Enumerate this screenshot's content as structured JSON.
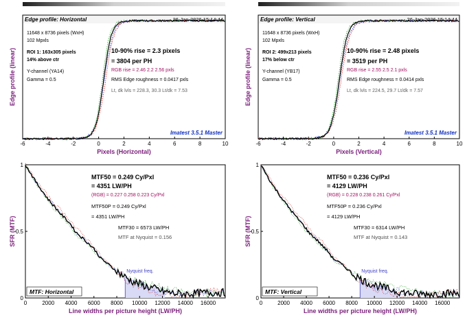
{
  "colors": {
    "plot_bg": "#ffffff",
    "axis_label": "#7a1f7a",
    "title_box_bg": "#ffffff",
    "main_curve": "#000000",
    "red": "#d02020",
    "green": "#20a020",
    "blue": "#3040d0",
    "rgb_text": "#a01060",
    "footer_text": "#1030c0",
    "nyquist": "#4040c0",
    "fill": "#d8daf6",
    "grid": "#c8c8c8"
  },
  "chart_data": [
    {
      "id": "edge-h",
      "type": "line",
      "title": "Edge profile: Horizontal",
      "date": "26-Jan-2026 15:14:44",
      "xlabel": "Pixels (Horizontal)",
      "ylabel": "Edge profile (linear)",
      "xlim": [
        -6,
        10
      ],
      "ylim": [
        0,
        1
      ],
      "xticks": [
        -6,
        -4,
        -2,
        0,
        2,
        4,
        6,
        8,
        10
      ],
      "info_lines": [
        "11648 x 8736 pixels (WxH)",
        "102 Mpxls"
      ],
      "roi_lines": [
        "ROI 1:  163x305 pixels",
        "14% above ctr"
      ],
      "channel_lines": [
        "Y-channel  (YA14)",
        "Gamma = 0.5"
      ],
      "big_lines": [
        "10-90% rise = 2.3 pixels",
        "= 3804 per PH"
      ],
      "rgb_line": "RGB rise = 2.46   2.2   2.56 pxls",
      "rms_line": "RMS Edge roughness = 0.0417 pxls",
      "lt_line": "Lt, dk lvls = 228.3, 30.3   Lt/dk = 7.53",
      "footer": "Imatest 3.5.1 Master",
      "edge_center": 0.4,
      "edge_width": 0.62,
      "floor": 0.0,
      "ceiling": 0.955
    },
    {
      "id": "edge-v",
      "type": "line",
      "title": "Edge profile: Vertical",
      "date": "26-Jan-2026 15:14:44",
      "xlabel": "Pixels (Vertical)",
      "ylabel": "Edge profile (linear)",
      "xlim": [
        -6,
        10
      ],
      "ylim": [
        0,
        1
      ],
      "xticks": [
        -6,
        -4,
        -2,
        0,
        2,
        4,
        6,
        8,
        10
      ],
      "info_lines": [
        "11648 x 8736 pixels (WxH)",
        "102 Mpxls"
      ],
      "roi_lines": [
        "ROI 2:  499x213 pixels",
        "17% below ctr"
      ],
      "channel_lines": [
        "Y-channel  (YB17)",
        "Gamma = 0.5"
      ],
      "big_lines": [
        "10-90% rise = 2.48 pixels",
        "= 3519 per PH"
      ],
      "rgb_line": "RGB rise = 2.55   2.5   2.1 pxls",
      "rms_line": "RMS Edge roughness = 0.0414 pxls",
      "lt_line": "Lt, dk lvls = 224.5, 29.7   Lt/dk = 7.57",
      "footer": "Imatest 3.5.1 Master",
      "edge_center": 0.45,
      "edge_width": 0.66,
      "floor": 0.0,
      "ceiling": 0.955
    },
    {
      "id": "mtf-h",
      "type": "line",
      "title": "MTF: Horizontal",
      "xlabel": "Line widths per picture height (LW/PH)",
      "ylabel": "SFR (MTF)",
      "xlim": [
        0,
        17500
      ],
      "ylim": [
        0,
        1
      ],
      "xticks": [
        0,
        2000,
        4000,
        6000,
        8000,
        10000,
        12000,
        14000,
        16000
      ],
      "yticks": [
        0,
        0.5,
        1
      ],
      "big_lines": [
        "MTF50 = 0.249 Cy/Pxl",
        "= 4351 LW/PH"
      ],
      "rgb_line": "(RGB) = 0.227   0.258   0.223 Cy/Pxl",
      "p_lines": [
        "MTF50P = 0.249 Cy/Pxl",
        "= 4351 LW/PH"
      ],
      "m_lines": [
        "MTF30 = 6573 LW/PH",
        "MTF at Nyquist = 0.156"
      ],
      "nyquist_label": "Nyquist freq.",
      "nyquist_x": 8736,
      "mtf_points": [
        [
          0,
          1.0
        ],
        [
          1000,
          0.86
        ],
        [
          2000,
          0.74
        ],
        [
          3000,
          0.64
        ],
        [
          4000,
          0.55
        ],
        [
          4351,
          0.5
        ],
        [
          5000,
          0.45
        ],
        [
          6000,
          0.37
        ],
        [
          6573,
          0.3
        ],
        [
          7000,
          0.27
        ],
        [
          8000,
          0.2
        ],
        [
          8736,
          0.156
        ],
        [
          9500,
          0.12
        ],
        [
          10500,
          0.09
        ],
        [
          11500,
          0.065
        ],
        [
          12000,
          0.05
        ],
        [
          13000,
          0.035
        ],
        [
          14000,
          0.03
        ],
        [
          15000,
          0.035
        ],
        [
          16000,
          0.04
        ],
        [
          17500,
          0.04
        ]
      ]
    },
    {
      "id": "mtf-v",
      "type": "line",
      "title": "MTF: Vertical",
      "xlabel": "Line widths per picture height (LW/PH)",
      "ylabel": "SFR (MTF)",
      "xlim": [
        0,
        17500
      ],
      "ylim": [
        0,
        1
      ],
      "xticks": [
        0,
        2000,
        4000,
        6000,
        8000,
        10000,
        12000,
        14000,
        16000
      ],
      "yticks": [
        0,
        0.5,
        1
      ],
      "big_lines": [
        "MTF50 = 0.236 Cy/Pxl",
        "= 4129 LW/PH"
      ],
      "rgb_line": "(RGB) = 0.228   0.238   0.261 Cy/Pxl",
      "p_lines": [
        "MTF50P = 0.236 Cy/Pxl",
        "= 4129 LW/PH"
      ],
      "m_lines": [
        "MTF30 = 6314 LW/PH",
        "MTF at Nyquist = 0.143"
      ],
      "nyquist_label": "Nyquist freq.",
      "nyquist_x": 8736,
      "mtf_points": [
        [
          0,
          1.0
        ],
        [
          1000,
          0.85
        ],
        [
          2000,
          0.73
        ],
        [
          3000,
          0.62
        ],
        [
          4000,
          0.52
        ],
        [
          4129,
          0.5
        ],
        [
          5000,
          0.43
        ],
        [
          6000,
          0.34
        ],
        [
          6314,
          0.3
        ],
        [
          7000,
          0.26
        ],
        [
          8000,
          0.19
        ],
        [
          8736,
          0.143
        ],
        [
          9500,
          0.11
        ],
        [
          10500,
          0.085
        ],
        [
          11500,
          0.06
        ],
        [
          12000,
          0.05
        ],
        [
          13000,
          0.035
        ],
        [
          14000,
          0.03
        ],
        [
          15000,
          0.03
        ],
        [
          16000,
          0.035
        ],
        [
          17500,
          0.035
        ]
      ]
    }
  ]
}
